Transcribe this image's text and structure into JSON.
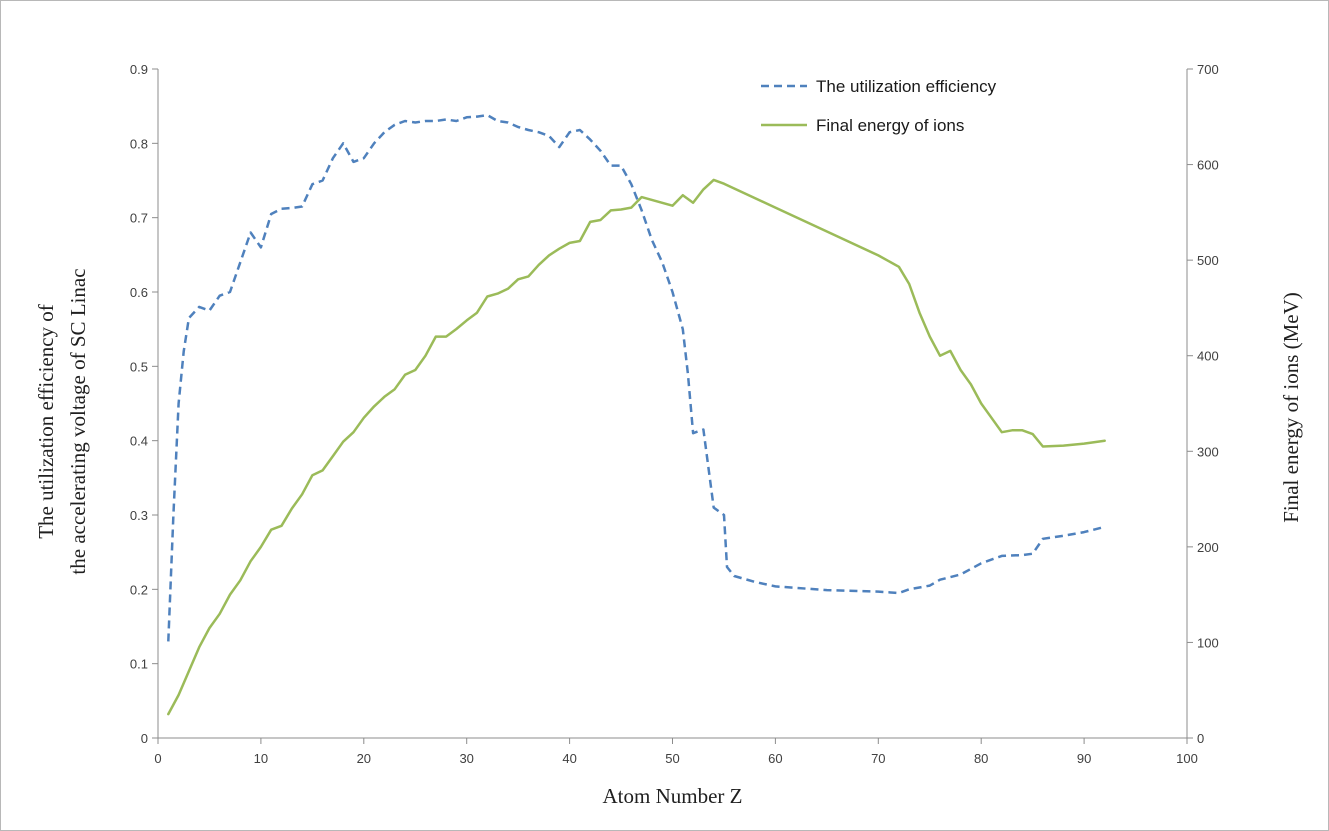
{
  "chart_data": {
    "type": "line",
    "xlabel": "Atom Number Z",
    "ylabel_left": [
      "The utilization efficiency of",
      "the accelerating voltage of SC Linac"
    ],
    "ylabel_right": "Final energy of ions (MeV)",
    "xlim": [
      0,
      100
    ],
    "ylim_left": [
      0,
      0.9
    ],
    "ylim_right": [
      0,
      700
    ],
    "x_ticks": [
      "0",
      "10",
      "20",
      "30",
      "40",
      "50",
      "60",
      "70",
      "80",
      "90",
      "100"
    ],
    "y_left_ticks": [
      "0",
      "0.1",
      "0.2",
      "0.3",
      "0.4",
      "0.5",
      "0.6",
      "0.7",
      "0.8",
      "0.9"
    ],
    "y_right_ticks": [
      "0",
      "100",
      "200",
      "300",
      "400",
      "500",
      "600",
      "700"
    ],
    "legend_position": "top-right, inside plot",
    "grid": false,
    "series": [
      {
        "name": "The utilization efficiency",
        "axis": "left",
        "color": "#4f81bd",
        "style": "dashed",
        "points": [
          [
            1,
            0.13
          ],
          [
            1.5,
            0.3
          ],
          [
            2,
            0.45
          ],
          [
            2.5,
            0.52
          ],
          [
            3,
            0.565
          ],
          [
            4,
            0.58
          ],
          [
            5,
            0.575
          ],
          [
            6,
            0.595
          ],
          [
            7,
            0.6
          ],
          [
            8,
            0.64
          ],
          [
            9,
            0.68
          ],
          [
            10,
            0.66
          ],
          [
            11,
            0.705
          ],
          [
            12,
            0.712
          ],
          [
            13,
            0.713
          ],
          [
            14,
            0.715
          ],
          [
            15,
            0.745
          ],
          [
            16,
            0.75
          ],
          [
            17,
            0.78
          ],
          [
            18,
            0.8
          ],
          [
            19,
            0.775
          ],
          [
            20,
            0.78
          ],
          [
            21,
            0.8
          ],
          [
            22,
            0.815
          ],
          [
            23,
            0.825
          ],
          [
            24,
            0.83
          ],
          [
            25,
            0.828
          ],
          [
            26,
            0.83
          ],
          [
            27,
            0.83
          ],
          [
            28,
            0.832
          ],
          [
            29,
            0.83
          ],
          [
            30,
            0.835
          ],
          [
            31,
            0.836
          ],
          [
            32,
            0.838
          ],
          [
            33,
            0.83
          ],
          [
            34,
            0.828
          ],
          [
            35,
            0.822
          ],
          [
            36,
            0.818
          ],
          [
            37,
            0.815
          ],
          [
            38,
            0.81
          ],
          [
            39,
            0.795
          ],
          [
            40,
            0.815
          ],
          [
            41,
            0.818
          ],
          [
            42,
            0.805
          ],
          [
            43,
            0.79
          ],
          [
            44,
            0.77
          ],
          [
            45,
            0.77
          ],
          [
            46,
            0.745
          ],
          [
            47,
            0.71
          ],
          [
            48,
            0.67
          ],
          [
            49,
            0.64
          ],
          [
            50,
            0.6
          ],
          [
            51,
            0.55
          ],
          [
            51.5,
            0.49
          ],
          [
            52,
            0.41
          ],
          [
            53,
            0.415
          ],
          [
            54,
            0.31
          ],
          [
            55,
            0.3
          ],
          [
            55.3,
            0.23
          ],
          [
            56,
            0.218
          ],
          [
            58,
            0.21
          ],
          [
            60,
            0.204
          ],
          [
            65,
            0.199
          ],
          [
            70,
            0.197
          ],
          [
            72,
            0.195
          ],
          [
            73,
            0.2
          ],
          [
            75,
            0.205
          ],
          [
            76,
            0.213
          ],
          [
            78,
            0.22
          ],
          [
            80,
            0.235
          ],
          [
            82,
            0.245
          ],
          [
            84,
            0.246
          ],
          [
            85,
            0.248
          ],
          [
            86,
            0.268
          ],
          [
            88,
            0.272
          ],
          [
            90,
            0.277
          ],
          [
            92,
            0.284
          ]
        ]
      },
      {
        "name": "Final energy of ions",
        "axis": "right",
        "color": "#9bbb59",
        "style": "solid",
        "points": [
          [
            1,
            25
          ],
          [
            2,
            45
          ],
          [
            3,
            70
          ],
          [
            4,
            95
          ],
          [
            5,
            115
          ],
          [
            6,
            130
          ],
          [
            7,
            150
          ],
          [
            8,
            165
          ],
          [
            9,
            185
          ],
          [
            10,
            200
          ],
          [
            11,
            218
          ],
          [
            12,
            222
          ],
          [
            13,
            240
          ],
          [
            14,
            255
          ],
          [
            15,
            275
          ],
          [
            16,
            280
          ],
          [
            17,
            295
          ],
          [
            18,
            310
          ],
          [
            19,
            320
          ],
          [
            20,
            335
          ],
          [
            21,
            347
          ],
          [
            22,
            357
          ],
          [
            23,
            365
          ],
          [
            24,
            380
          ],
          [
            25,
            385
          ],
          [
            26,
            400
          ],
          [
            27,
            420
          ],
          [
            28,
            420
          ],
          [
            29,
            428
          ],
          [
            30,
            437
          ],
          [
            31,
            445
          ],
          [
            32,
            462
          ],
          [
            33,
            465
          ],
          [
            34,
            470
          ],
          [
            35,
            480
          ],
          [
            36,
            483
          ],
          [
            37,
            495
          ],
          [
            38,
            505
          ],
          [
            39,
            512
          ],
          [
            40,
            518
          ],
          [
            41,
            520
          ],
          [
            42,
            540
          ],
          [
            43,
            542
          ],
          [
            44,
            552
          ],
          [
            45,
            553
          ],
          [
            46,
            555
          ],
          [
            47,
            566
          ],
          [
            48,
            563
          ],
          [
            49,
            560
          ],
          [
            50,
            557
          ],
          [
            51,
            568
          ],
          [
            52,
            560
          ],
          [
            53,
            574
          ],
          [
            54,
            584
          ],
          [
            55,
            580
          ],
          [
            56,
            575
          ],
          [
            60,
            555
          ],
          [
            65,
            530
          ],
          [
            70,
            505
          ],
          [
            72,
            493
          ],
          [
            73,
            475
          ],
          [
            74,
            445
          ],
          [
            75,
            420
          ],
          [
            76,
            400
          ],
          [
            77,
            405
          ],
          [
            78,
            385
          ],
          [
            79,
            370
          ],
          [
            80,
            350
          ],
          [
            81,
            335
          ],
          [
            82,
            320
          ],
          [
            83,
            322
          ],
          [
            84,
            322
          ],
          [
            85,
            318
          ],
          [
            86,
            305
          ],
          [
            88,
            306
          ],
          [
            90,
            308
          ],
          [
            92,
            311
          ]
        ]
      }
    ]
  }
}
